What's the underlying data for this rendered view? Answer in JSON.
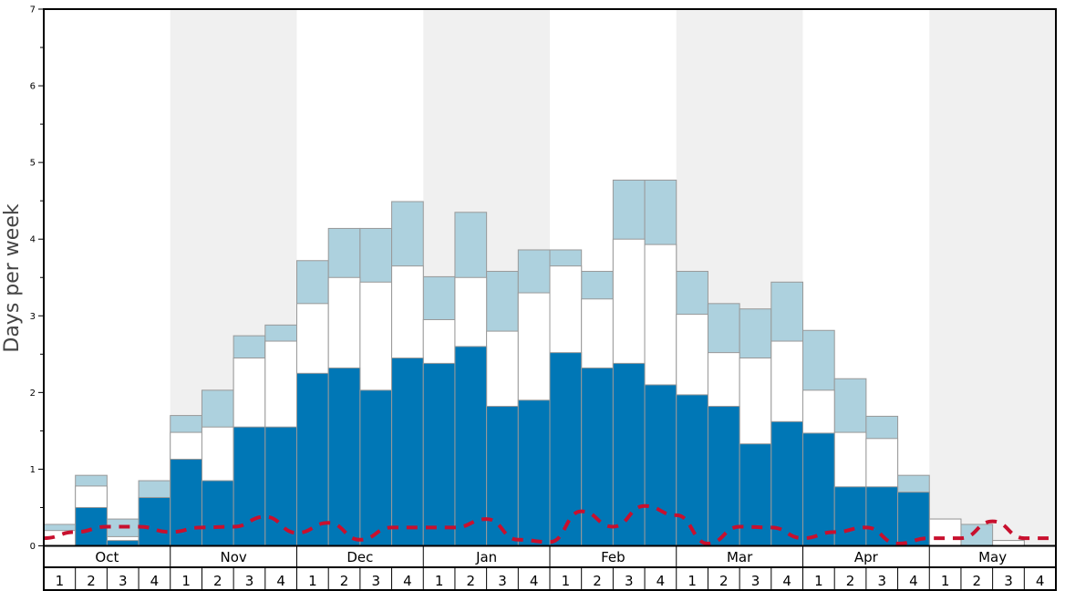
{
  "chart_data": {
    "type": "bar",
    "ylabel": "Days per week",
    "ylim": [
      0,
      7
    ],
    "yticks": [
      "0",
      "1",
      "2",
      "3",
      "4",
      "5",
      "6",
      "7"
    ],
    "months": [
      "Oct",
      "Nov",
      "Dec",
      "Jan",
      "Feb",
      "Mar",
      "Apr",
      "May"
    ],
    "week_labels": [
      "1",
      "2",
      "3",
      "4"
    ],
    "grid": false,
    "colors": {
      "series1": "#0077b6",
      "series2": "#ffffff",
      "series3": "#add1de",
      "line": "#c8102e",
      "band": "#f0f0f0",
      "bar_stroke": "#999999"
    },
    "series": [
      {
        "values": [
          0.0,
          0.5,
          0.07,
          0.63,
          1.13,
          0.85,
          1.55,
          1.55,
          2.25,
          2.32,
          2.03,
          2.45,
          2.38,
          2.6,
          1.82,
          1.9,
          2.52,
          2.32,
          2.38,
          2.1,
          1.97,
          1.82,
          1.33,
          1.62,
          1.47,
          0.77,
          0.77,
          0.7,
          0.0,
          0.0,
          0.0,
          0.0
        ]
      },
      {
        "values": [
          0.2,
          0.78,
          0.12,
          0.63,
          1.48,
          1.55,
          2.45,
          2.67,
          3.16,
          3.5,
          3.44,
          3.65,
          2.95,
          3.5,
          2.8,
          3.3,
          3.65,
          3.22,
          4.0,
          3.93,
          3.02,
          2.52,
          2.45,
          2.67,
          2.03,
          1.48,
          1.4,
          0.7,
          0.35,
          0.0,
          0.07,
          0.0
        ]
      },
      {
        "values": [
          0.28,
          0.92,
          0.35,
          0.85,
          1.7,
          2.03,
          2.74,
          2.88,
          3.72,
          4.14,
          4.14,
          4.49,
          3.51,
          4.35,
          3.58,
          3.86,
          3.86,
          3.58,
          4.77,
          4.77,
          3.58,
          3.16,
          3.09,
          3.44,
          2.81,
          2.18,
          1.69,
          0.92,
          0.35,
          0.28,
          0.07,
          0.0
        ]
      }
    ],
    "line_values": [
      0.1,
      0.18,
      0.25,
      0.25,
      0.18,
      0.24,
      0.25,
      0.38,
      0.17,
      0.3,
      0.08,
      0.24,
      0.24,
      0.24,
      0.35,
      0.08,
      0.05,
      0.45,
      0.25,
      0.52,
      0.4,
      0.03,
      0.25,
      0.24,
      0.1,
      0.18,
      0.24,
      0.03,
      0.1,
      0.1,
      0.32,
      0.1,
      0.1
    ]
  }
}
